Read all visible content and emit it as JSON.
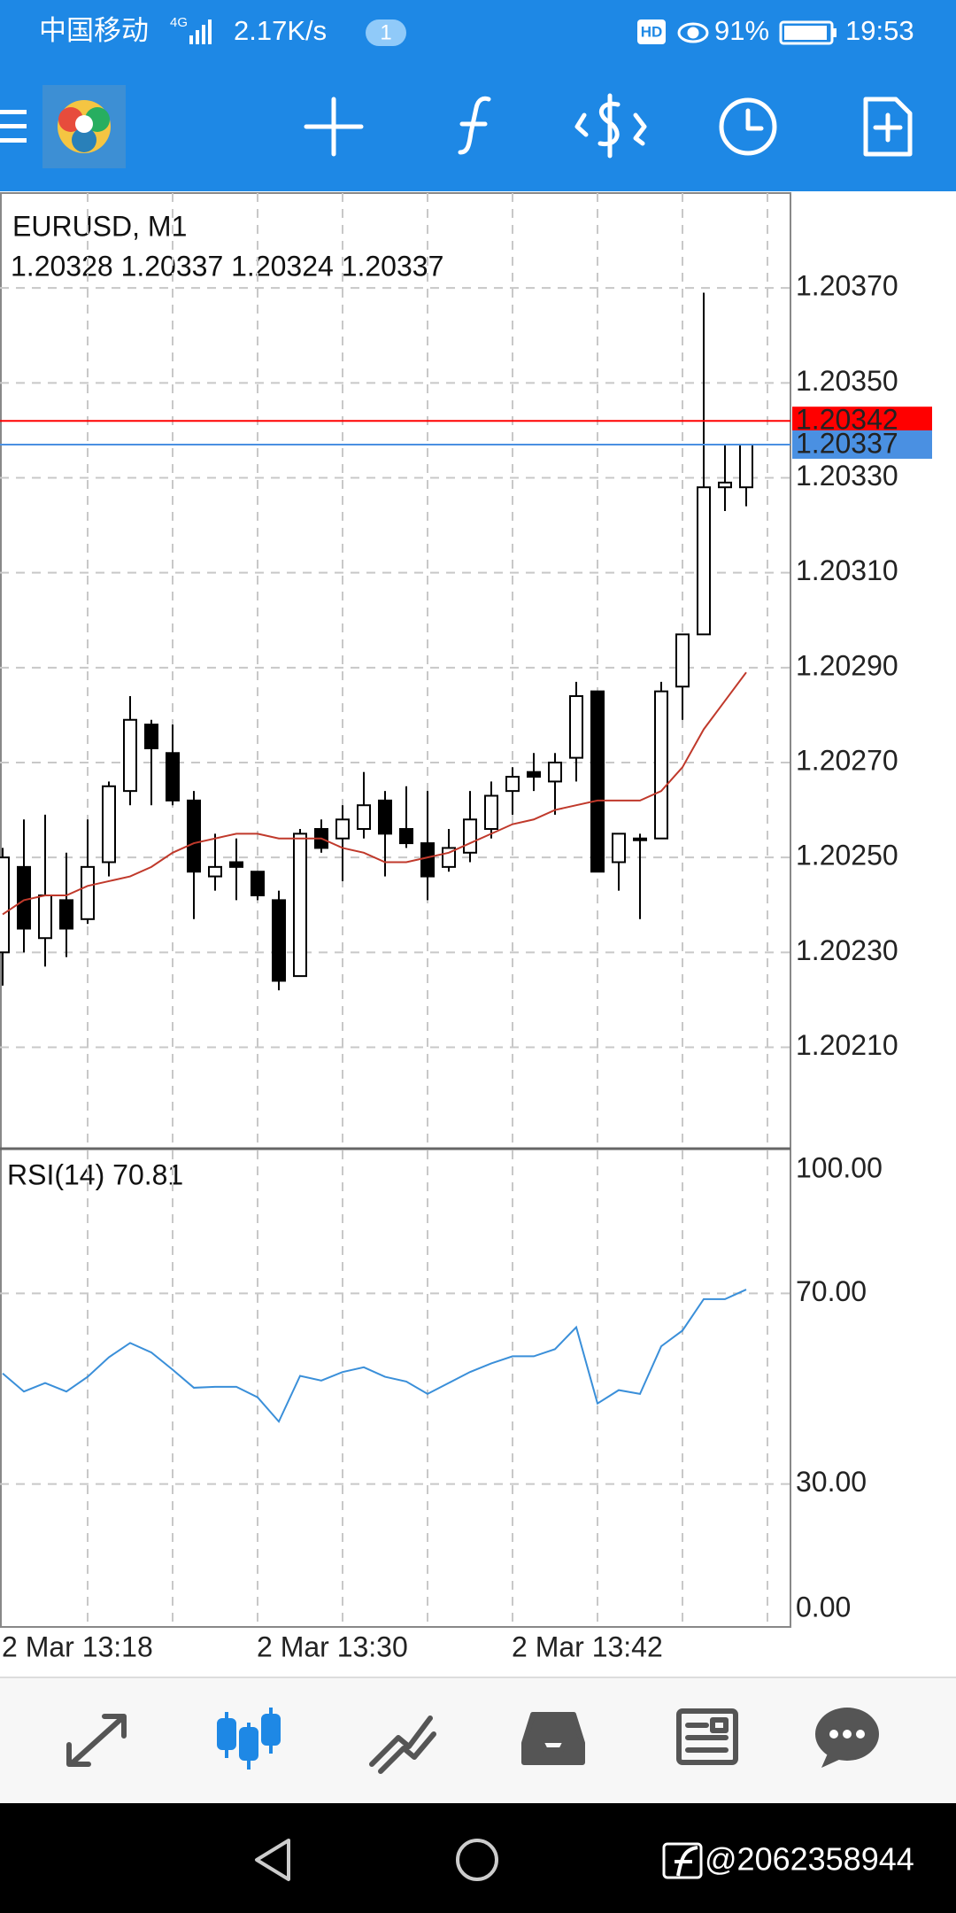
{
  "status_bar": {
    "carrier": "中国移动",
    "network": "4G",
    "speed": "2.17K/s",
    "notifications": "1",
    "hd": "HD",
    "battery": "91%",
    "time": "19:53"
  },
  "chart_data": [
    {
      "type": "candlestick",
      "title": "EURUSD, M1",
      "subtitle": "1.20328 1.20337 1.20324 1.20337",
      "open": [
        1.2023,
        1.20248,
        1.20233,
        1.20241,
        1.20237,
        1.20249,
        1.20264,
        1.20278,
        1.20272,
        1.20262,
        1.20246,
        1.20249,
        1.20247,
        1.20241,
        1.20225,
        1.20256,
        1.20254,
        1.20256,
        1.20262,
        1.20256,
        1.20253,
        1.20248,
        1.20251,
        1.20256,
        1.20264,
        1.20268,
        1.20266,
        1.20271,
        1.20285,
        1.20249,
        1.20254,
        1.20254,
        1.20286,
        1.20297,
        1.20328,
        1.20328
      ],
      "high": [
        1.20252,
        1.20258,
        1.20259,
        1.20251,
        1.20258,
        1.20266,
        1.20284,
        1.20279,
        1.20278,
        1.20264,
        1.20255,
        1.20254,
        1.20247,
        1.20243,
        1.20256,
        1.20258,
        1.20261,
        1.20268,
        1.20264,
        1.20265,
        1.20264,
        1.20256,
        1.20264,
        1.20266,
        1.20269,
        1.20272,
        1.20272,
        1.20287,
        1.20285,
        1.20255,
        1.20255,
        1.20287,
        1.20297,
        1.20369,
        1.20337,
        1.20337
      ],
      "low": [
        1.20223,
        1.2023,
        1.20227,
        1.20229,
        1.20236,
        1.20246,
        1.20261,
        1.20261,
        1.20261,
        1.20237,
        1.20243,
        1.20241,
        1.20241,
        1.20222,
        1.20225,
        1.20251,
        1.20245,
        1.20254,
        1.20246,
        1.20252,
        1.20241,
        1.20247,
        1.20249,
        1.20254,
        1.20259,
        1.20264,
        1.20259,
        1.20266,
        1.20247,
        1.20243,
        1.20237,
        1.20254,
        1.20279,
        1.20297,
        1.20323,
        1.20324
      ],
      "close": [
        1.2025,
        1.20235,
        1.20242,
        1.20235,
        1.20248,
        1.20265,
        1.20279,
        1.20273,
        1.20262,
        1.20247,
        1.20248,
        1.20248,
        1.20242,
        1.20224,
        1.20255,
        1.20252,
        1.20258,
        1.20261,
        1.20255,
        1.20253,
        1.20246,
        1.20252,
        1.20258,
        1.20263,
        1.20267,
        1.20267,
        1.2027,
        1.20284,
        1.20247,
        1.20255,
        1.20254,
        1.20285,
        1.20297,
        1.20328,
        1.20329,
        1.20337
      ],
      "up_color": "#ffffff",
      "down_color": "#000000",
      "ma": {
        "color": "#c0392b",
        "values": [
          1.20238,
          1.20241,
          1.20242,
          1.20242,
          1.20244,
          1.20245,
          1.20246,
          1.20248,
          1.20251,
          1.20253,
          1.20254,
          1.20255,
          1.20255,
          1.20254,
          1.20254,
          1.20254,
          1.20252,
          1.20251,
          1.20249,
          1.20249,
          1.2025,
          1.20251,
          1.20253,
          1.20255,
          1.20257,
          1.20258,
          1.2026,
          1.20261,
          1.20262,
          1.20262,
          1.20262,
          1.20264,
          1.20269,
          1.20277,
          1.20283,
          1.20289
        ]
      },
      "price_lines": [
        {
          "value": 1.20342,
          "color": "#ff0000"
        },
        {
          "value": 1.20337,
          "color": "#4a90e2"
        }
      ],
      "ylim": [
        1.20189,
        1.2039
      ],
      "yticks": [
        {
          "value": 1.2021,
          "label": "1.20210"
        },
        {
          "value": 1.2023,
          "label": "1.20230"
        },
        {
          "value": 1.2025,
          "label": "1.20250"
        },
        {
          "value": 1.2027,
          "label": "1.20270"
        },
        {
          "value": 1.2029,
          "label": "1.20290"
        },
        {
          "value": 1.2031,
          "label": "1.20310"
        },
        {
          "value": 1.2033,
          "label": "1.20330"
        },
        {
          "value": 1.2035,
          "label": "1.20350"
        },
        {
          "value": 1.2037,
          "label": "1.20370"
        }
      ],
      "grid": true
    },
    {
      "type": "line",
      "title": "RSI(14) 70.81",
      "categories": [
        "2 Mar 13:18",
        null,
        null,
        null,
        null,
        null,
        null,
        null,
        null,
        null,
        null,
        null,
        "2 Mar 13:30",
        null,
        null,
        null,
        null,
        null,
        null,
        null,
        null,
        null,
        null,
        null,
        "2 Mar 13:42",
        null,
        null,
        null,
        null,
        null,
        null,
        null,
        null,
        null,
        null,
        null
      ],
      "color": "#3a8fd9",
      "values": [
        53.2,
        49.4,
        51.2,
        49.4,
        52.5,
        56.6,
        59.6,
        57.6,
        54.0,
        50.2,
        50.4,
        50.4,
        48.2,
        43.1,
        52.7,
        51.7,
        53.5,
        54.5,
        52.5,
        51.5,
        48.9,
        51.2,
        53.5,
        55.3,
        56.8,
        56.8,
        58.3,
        62.9,
        46.9,
        49.7,
        48.9,
        58.9,
        62.2,
        68.8,
        68.8,
        70.81
      ],
      "ylim": [
        0,
        100
      ],
      "yticks": [
        {
          "value": 0,
          "label": "0.00"
        },
        {
          "value": 30,
          "label": "30.00"
        },
        {
          "value": 70,
          "label": "70.00"
        },
        {
          "value": 100,
          "label": "100.00"
        }
      ],
      "grid": true
    }
  ],
  "watermark": "@2062358944"
}
